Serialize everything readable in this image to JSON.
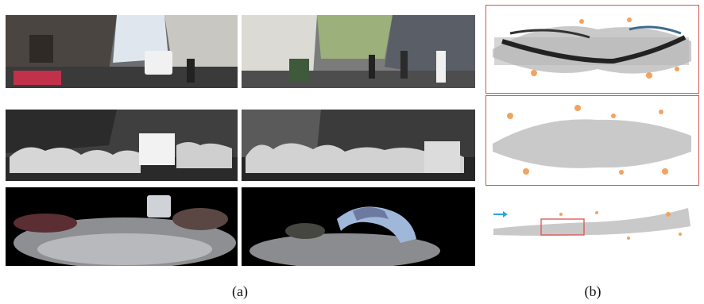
{
  "captions": {
    "left": "(a)",
    "right": "(b)"
  },
  "colors": {
    "map_gray": "#c9c9c9",
    "highlight_orange": "#f2a35e",
    "frame_red": "#d9534f",
    "arrow_blue": "#2aa6df"
  },
  "icons": {
    "start_arrow": "arrow-right-icon"
  }
}
